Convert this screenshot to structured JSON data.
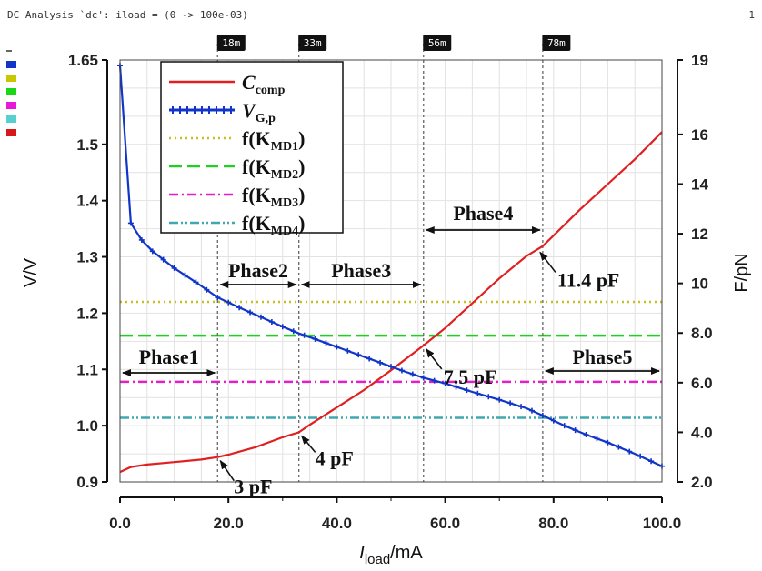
{
  "window": {
    "title": "DC Analysis `dc': iload = (0 -> 100e-03)",
    "page_number": "1"
  },
  "side_swatches": [
    {
      "name": "vgp-swatch",
      "color": "#1035c8"
    },
    {
      "name": "kmd1-swatch",
      "color": "#c8c800"
    },
    {
      "name": "kmd2-swatch",
      "color": "#18d818"
    },
    {
      "name": "kmd3-swatch",
      "color": "#e818d8"
    },
    {
      "name": "kmd4-swatch",
      "color": "#58d0d0"
    },
    {
      "name": "ccomp-swatch",
      "color": "#d81818"
    }
  ],
  "chart_data": {
    "type": "line",
    "xlabel_main": "I",
    "xlabel_sub": "load",
    "xlabel_unit": "/mA",
    "ylabel_left": "V/V",
    "ylabel_right": "F/pN",
    "xlim": [
      0,
      100
    ],
    "ylim_left": [
      0.9,
      1.65
    ],
    "ylim_right": [
      2.0,
      19.0
    ],
    "x_ticks": [
      "0.0",
      "20.0",
      "40.0",
      "60.0",
      "80.0",
      "100.0"
    ],
    "y_left_ticks": [
      "0.9",
      "1.0",
      "1.1",
      "1.2",
      "1.3",
      "1.4",
      "1.5",
      "1.65"
    ],
    "y_right_ticks": [
      "2.0",
      "4.0",
      "6.0",
      "8.0",
      "10",
      "12",
      "14",
      "16",
      "19"
    ],
    "grid": true,
    "legend_position": "top-left",
    "series": [
      {
        "name": "C",
        "name_sub": "comp",
        "axis": "right",
        "color": "#e02020",
        "style": "solid",
        "x": [
          0,
          2,
          5,
          10,
          15,
          18,
          20,
          25,
          30,
          33,
          35,
          40,
          45,
          50,
          56,
          60,
          65,
          70,
          75,
          78,
          85,
          90,
          95,
          100
        ],
        "y": [
          2.4,
          2.6,
          2.7,
          2.8,
          2.9,
          3.0,
          3.1,
          3.4,
          3.8,
          4.0,
          4.3,
          5.0,
          5.7,
          6.5,
          7.5,
          8.2,
          9.2,
          10.2,
          11.1,
          11.5,
          13.0,
          14.0,
          15.0,
          16.1
        ]
      },
      {
        "name": "V",
        "name_sub": "G,p",
        "axis": "left",
        "color": "#1035c8",
        "style": "line-markers",
        "x": [
          0,
          2,
          4,
          6,
          8,
          10,
          14,
          18,
          22,
          26,
          30,
          33,
          36,
          40,
          44,
          48,
          52,
          56,
          60,
          65,
          70,
          75,
          78,
          82,
          86,
          90,
          95,
          100
        ],
        "y": [
          1.64,
          1.36,
          1.33,
          1.31,
          1.295,
          1.28,
          1.255,
          1.228,
          1.21,
          1.193,
          1.176,
          1.164,
          1.154,
          1.14,
          1.126,
          1.112,
          1.098,
          1.085,
          1.075,
          1.06,
          1.046,
          1.031,
          1.018,
          1.0,
          0.984,
          0.97,
          0.95,
          0.928
        ]
      },
      {
        "name": "f(K",
        "name_sub": "MD1",
        "name_tail": ")",
        "axis": "left",
        "color": "#c8c020",
        "style": "dotted",
        "x": [
          0,
          100
        ],
        "y": [
          1.22,
          1.22
        ]
      },
      {
        "name": "f(K",
        "name_sub": "MD2",
        "name_tail": ")",
        "axis": "left",
        "color": "#20d020",
        "style": "dashed",
        "x": [
          0,
          100
        ],
        "y": [
          1.16,
          1.16
        ]
      },
      {
        "name": "f(K",
        "name_sub": "MD3",
        "name_tail": ")",
        "axis": "left",
        "color": "#e020c8",
        "style": "dashdot",
        "x": [
          0,
          100
        ],
        "y": [
          1.078,
          1.078
        ]
      },
      {
        "name": "f(K",
        "name_sub": "MD4",
        "name_tail": ")",
        "axis": "left",
        "color": "#40a8b0",
        "style": "dashdotdot",
        "x": [
          0,
          100
        ],
        "y": [
          1.014,
          1.014
        ]
      }
    ],
    "vertical_markers": [
      {
        "x": 18,
        "label": "18m"
      },
      {
        "x": 33,
        "label": "33m"
      },
      {
        "x": 56,
        "label": "56m"
      },
      {
        "x": 78,
        "label": "78m"
      }
    ],
    "phases": [
      {
        "label": "Phase1",
        "x_start": 0,
        "x_end": 18
      },
      {
        "label": "Phase2",
        "x_start": 18,
        "x_end": 33
      },
      {
        "label": "Phase3",
        "x_start": 33,
        "x_end": 56
      },
      {
        "label": "Phase4",
        "x_start": 56,
        "x_end": 78
      },
      {
        "label": "Phase5",
        "x_start": 78,
        "x_end": 100
      }
    ],
    "annotations": [
      {
        "label": "3 pF",
        "x": 18,
        "y": 3.0
      },
      {
        "label": "4 pF",
        "x": 33,
        "y": 4.0
      },
      {
        "label": "7.5 pF",
        "x": 56,
        "y": 7.5
      },
      {
        "label": "11.4 pF",
        "x": 77,
        "y": 11.4
      }
    ]
  }
}
